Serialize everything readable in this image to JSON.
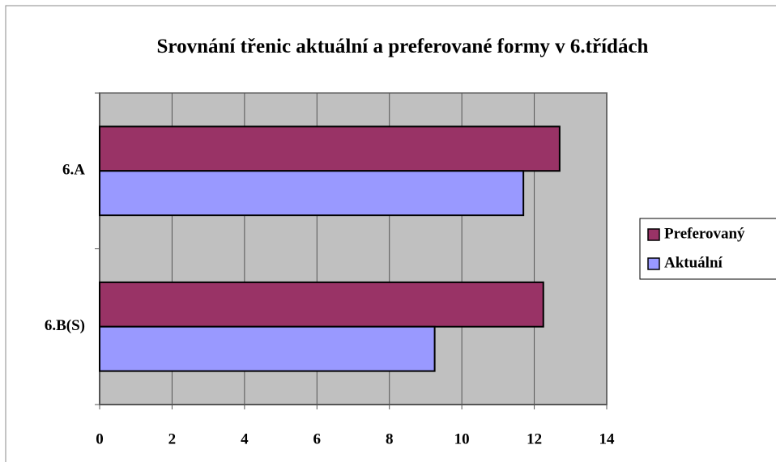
{
  "chart_data": {
    "type": "bar",
    "orientation": "horizontal",
    "title": "Srovnání třenic aktuální a preferované formy v 6.třídách",
    "categories": [
      "6.A",
      "6.B(S)"
    ],
    "series": [
      {
        "name": "Preferovaný",
        "color": "#993366",
        "values": [
          12.7,
          12.25
        ]
      },
      {
        "name": "Aktuální",
        "color": "#9999ff",
        "values": [
          11.7,
          9.25
        ]
      }
    ],
    "xlim": [
      0,
      14
    ],
    "xticks": [
      0,
      2,
      4,
      6,
      8,
      10,
      12,
      14
    ],
    "grid": true,
    "legend": "right"
  }
}
